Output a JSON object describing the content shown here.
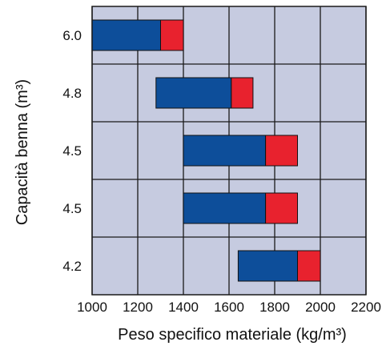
{
  "chart_data": {
    "type": "bar",
    "orientation": "horizontal",
    "stacked": true,
    "xlabel": "Peso specifico materiale (kg/m³)",
    "ylabel": "Capacità benna (m³)",
    "xlim": [
      1000,
      2200
    ],
    "x_ticks": [
      "1000",
      "1200",
      "1400",
      "1600",
      "1800",
      "2000",
      "2200"
    ],
    "categories": [
      "6.0",
      "4.8",
      "4.5",
      "4.5",
      "4.2"
    ],
    "bars": [
      {
        "category": "6.0",
        "start": 1000,
        "blue_end": 1300,
        "end": 1400
      },
      {
        "category": "4.8",
        "start": 1280,
        "blue_end": 1610,
        "end": 1705
      },
      {
        "category": "4.5",
        "start": 1400,
        "blue_end": 1760,
        "end": 1900
      },
      {
        "category": "4.5",
        "start": 1400,
        "blue_end": 1760,
        "end": 1900
      },
      {
        "category": "4.2",
        "start": 1640,
        "blue_end": 1900,
        "end": 2000
      }
    ],
    "grid": true,
    "colors": {
      "plot_background": "#c6cbe0",
      "grid": "#1a1a1a",
      "blue_segment": "#0d4e9a",
      "red_segment": "#e8222e"
    }
  }
}
